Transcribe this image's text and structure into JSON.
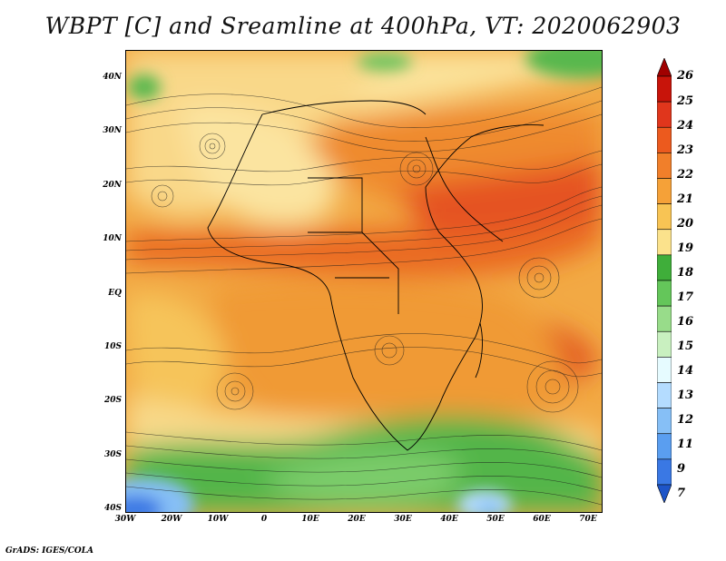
{
  "title": "WBPT [C] and Sreamline at 400hPa, VT: 2020062903",
  "credit": "GrADS: IGES/COLA",
  "map": {
    "lat_labels": [
      "40N",
      "30N",
      "20N",
      "10N",
      "EQ",
      "10S",
      "20S",
      "30S",
      "40S"
    ],
    "lon_labels": [
      "30W",
      "20W",
      "10W",
      "0",
      "10E",
      "20E",
      "30E",
      "40E",
      "50E",
      "60E",
      "70E"
    ],
    "lat_range": [
      -40,
      45
    ],
    "lon_range": [
      -30,
      72
    ]
  },
  "colorbar": {
    "labels": [
      "26",
      "25",
      "24",
      "23",
      "22",
      "21",
      "20",
      "19",
      "18",
      "17",
      "16",
      "15",
      "14",
      "13",
      "12",
      "11",
      "9",
      "7"
    ],
    "colors": [
      "#a00000",
      "#c8140a",
      "#e0361c",
      "#ec5a1e",
      "#f17f2a",
      "#f5a138",
      "#f8c454",
      "#fbe28c",
      "#3fae3a",
      "#64c65a",
      "#98dc8a",
      "#c9f0c0",
      "#e6fbff",
      "#b4dcff",
      "#86bff6",
      "#5a9ef0",
      "#3a78e4",
      "#1e55c8"
    ]
  }
}
